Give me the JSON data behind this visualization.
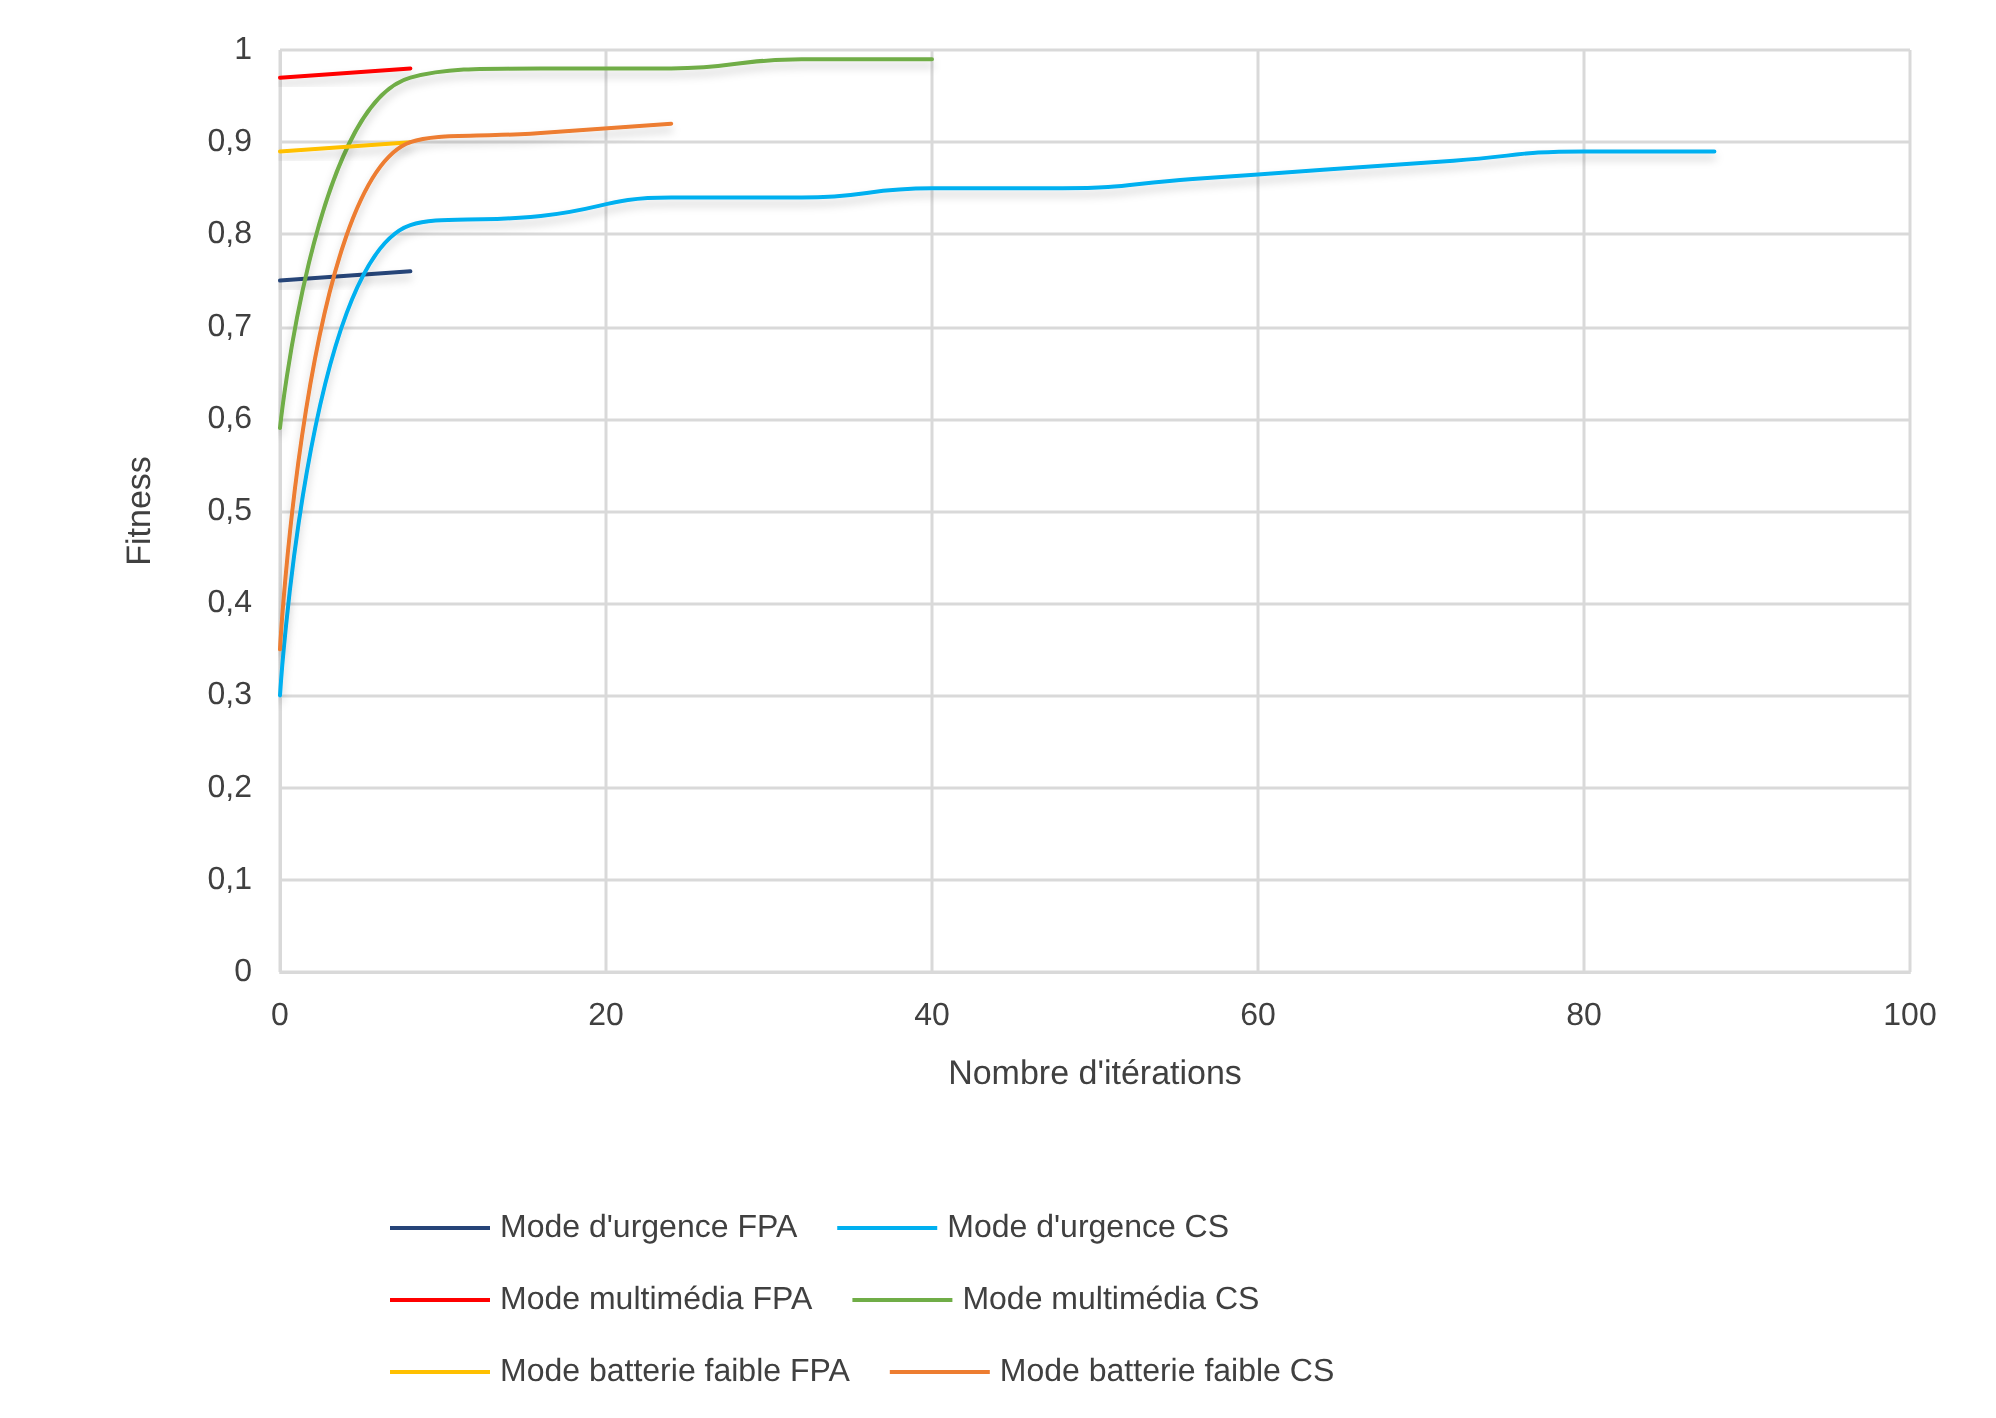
{
  "chart_data": {
    "type": "line",
    "xlabel": "Nombre d'itérations",
    "ylabel": "Fitness",
    "xlim": [
      0,
      100
    ],
    "xticks": [
      0,
      20,
      40,
      60,
      80,
      100
    ],
    "ylim": [
      0,
      1
    ],
    "yticks": [
      0,
      {
        "value": 0.1,
        "label": "0,1"
      },
      {
        "value": 0.2,
        "label": "0,2"
      },
      {
        "value": 0.3,
        "label": "0,3"
      },
      {
        "value": 0.4,
        "label": "0,4"
      },
      {
        "value": 0.5,
        "label": "0,5"
      },
      {
        "value": 0.6,
        "label": "0,6"
      },
      {
        "value": 0.7,
        "label": "0,7"
      },
      {
        "value": 0.8,
        "label": "0,8"
      },
      {
        "value": 0.9,
        "label": "0,9"
      },
      1
    ],
    "grid": true,
    "legend": "bottom",
    "marker": "none",
    "line_style": "solid",
    "series": [
      {
        "name": "Mode d'urgence FPA",
        "color": "#264478",
        "x": [
          0,
          8
        ],
        "values": [
          0.75,
          0.76
        ]
      },
      {
        "name": "Mode d'urgence CS",
        "color": "#00b0f0",
        "x": [
          0,
          8,
          16,
          24,
          32,
          40,
          48,
          56,
          64,
          72,
          80,
          88
        ],
        "values": [
          0.3,
          0.81,
          0.82,
          0.84,
          0.84,
          0.85,
          0.85,
          0.86,
          0.87,
          0.88,
          0.89,
          0.89
        ]
      },
      {
        "name": "Mode multimédia FPA",
        "color": "#ff0000",
        "x": [
          0,
          8
        ],
        "values": [
          0.97,
          0.98
        ]
      },
      {
        "name": "Mode multimédia CS",
        "color": "#70ad47",
        "x": [
          0,
          8,
          16,
          24,
          32,
          40
        ],
        "values": [
          0.59,
          0.97,
          0.98,
          0.98,
          0.99,
          0.99
        ]
      },
      {
        "name": "Mode batterie faible FPA",
        "color": "#ffc000",
        "x": [
          0,
          8
        ],
        "values": [
          0.89,
          0.9
        ]
      },
      {
        "name": "Mode batterie faible CS",
        "color": "#ed7d31",
        "x": [
          0,
          8,
          16,
          24
        ],
        "values": [
          0.35,
          0.9,
          0.91,
          0.92
        ]
      }
    ]
  }
}
